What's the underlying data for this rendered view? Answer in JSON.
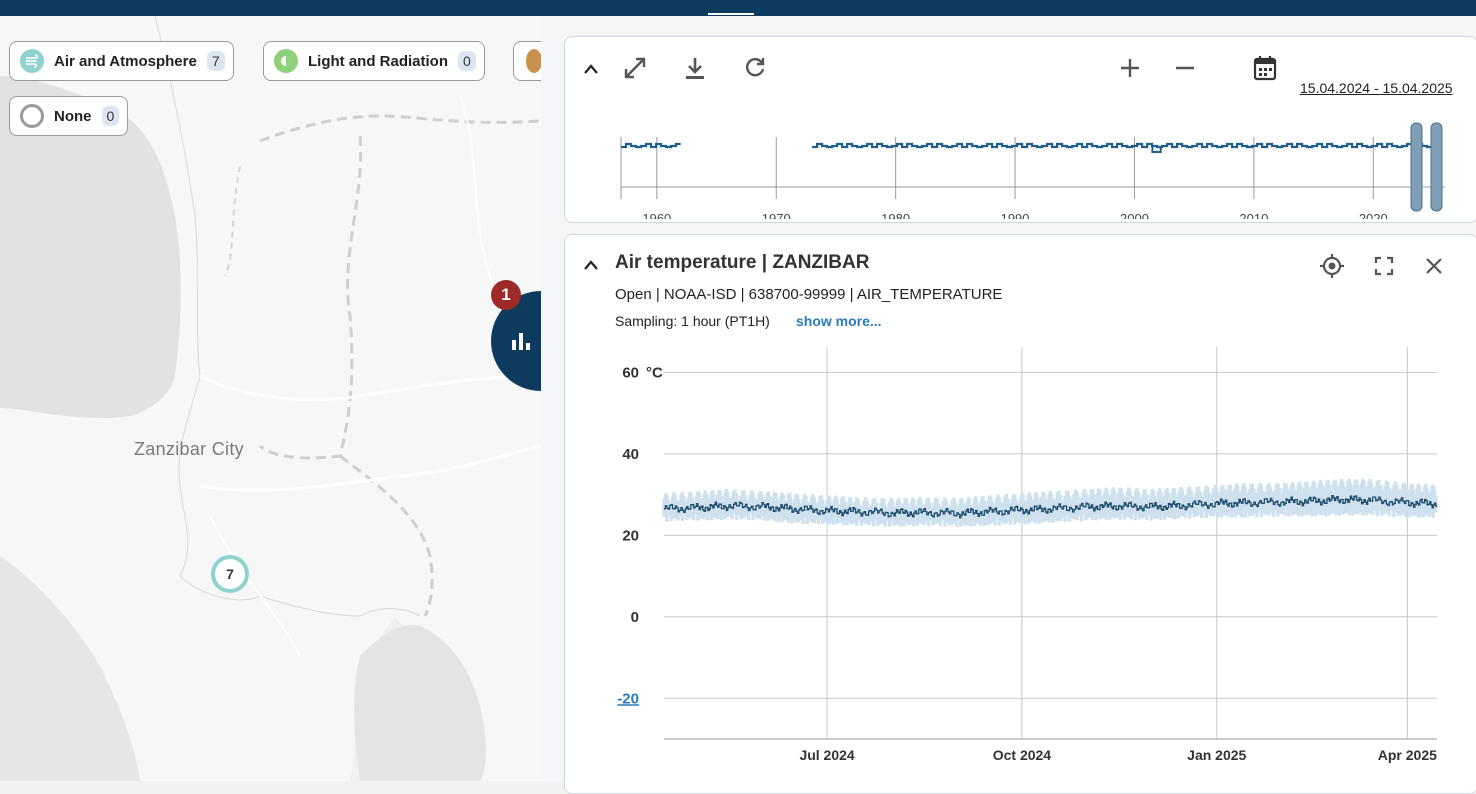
{
  "map": {
    "city_label": "Zanzibar City",
    "cluster_count": "7",
    "chart_badge": "1",
    "chips": [
      {
        "label": "Air and Atmosphere",
        "count": "7",
        "icon": "air-atmosphere-icon",
        "color": "#8fd3cf"
      },
      {
        "label": "Light and Radiation",
        "count": "0",
        "icon": "light-radiation-icon",
        "color": "#8fd07a"
      },
      {
        "label": "None",
        "count": "0",
        "icon": "none-icon",
        "color": "#9a9a9a"
      }
    ]
  },
  "timeline": {
    "date_range": "15.04.2024 - 15.04.2025",
    "ticks": [
      "1960",
      "1970",
      "1980",
      "1990",
      "2000",
      "2010",
      "2020"
    ],
    "icons": [
      "collapse-icon",
      "expand-icon",
      "download-icon",
      "refresh-icon",
      "zoom-in-icon",
      "zoom-out-icon",
      "calendar-icon"
    ]
  },
  "chart_panel": {
    "title": "Air temperature | ZANZIBAR",
    "subtitle": "Open | NOAA-ISD | 638700-99999 | AIR_TEMPERATURE",
    "sampling": "Sampling: 1 hour (PT1H)",
    "show_more": "show more...",
    "icons": [
      "locate-icon",
      "fullscreen-icon",
      "close-icon"
    ]
  },
  "chart_data": {
    "type": "line",
    "title": "",
    "xlabel": "",
    "ylabel": "°C",
    "ylim": [
      -30,
      65
    ],
    "y_ticks": [
      60,
      40,
      20,
      0,
      -20
    ],
    "x_ticks": [
      "Jul 2024",
      "Oct 2024",
      "Jan 2025",
      "Apr 2025"
    ],
    "x_range": [
      "2024-04-15",
      "2025-04-15"
    ],
    "series": [
      {
        "name": "",
        "x": [
          "2024-04-15",
          "2024-05-01",
          "2024-05-15",
          "2024-06-01",
          "2024-06-15",
          "2024-07-01",
          "2024-07-15",
          "2024-08-01",
          "2024-08-15",
          "2024-09-01",
          "2024-09-15",
          "2024-10-01",
          "2024-10-15",
          "2024-11-01",
          "2024-11-15",
          "2024-12-01",
          "2024-12-15",
          "2025-01-01",
          "2025-01-15",
          "2025-02-01",
          "2025-02-15",
          "2025-03-01",
          "2025-03-15",
          "2025-04-01",
          "2025-04-15"
        ],
        "y": [
          26.5,
          26.8,
          27.2,
          27.0,
          26.5,
          26.0,
          25.8,
          25.5,
          25.6,
          25.4,
          25.8,
          26.2,
          26.5,
          27.0,
          27.2,
          27.0,
          27.3,
          27.8,
          28.0,
          28.2,
          28.4,
          28.8,
          28.6,
          28.0,
          27.8
        ],
        "band_low": [
          24.5,
          24.8,
          25.0,
          24.8,
          24.0,
          23.8,
          23.5,
          23.2,
          23.5,
          23.2,
          23.5,
          23.8,
          24.2,
          24.8,
          25.0,
          24.8,
          25.2,
          25.5,
          25.5,
          25.8,
          25.8,
          26.0,
          26.0,
          25.5,
          25.5
        ],
        "band_high": [
          29.0,
          29.5,
          30.0,
          29.5,
          29.0,
          28.5,
          28.0,
          27.8,
          28.0,
          27.8,
          28.5,
          29.0,
          29.5,
          30.0,
          30.5,
          30.0,
          30.5,
          31.0,
          31.5,
          31.5,
          32.0,
          32.5,
          32.5,
          31.5,
          31.0
        ],
        "color": "#1f4e6e",
        "band_color": "#cfe1ee"
      }
    ],
    "overview": {
      "x_range": [
        1957,
        2025
      ],
      "segments": [
        [
          1957,
          1962
        ],
        [
          1973,
          2025
        ]
      ],
      "approx_value": 26.5
    }
  }
}
